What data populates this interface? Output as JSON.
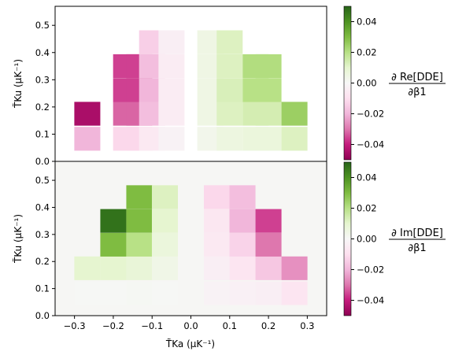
{
  "chart_data": [
    {
      "type": "heatmap",
      "panel": "top",
      "ylabel": "T̃Ku (μK⁻¹)",
      "xlim": [
        -0.35,
        0.35
      ],
      "ylim": [
        0.0,
        0.57
      ],
      "xticks": [
        -0.3,
        -0.2,
        -0.1,
        0.0,
        0.1,
        0.2,
        0.3
      ],
      "yticks": [
        0.0,
        0.1,
        0.2,
        0.3,
        0.4,
        0.5
      ],
      "ytick_labels": [
        "0.0",
        "0.1",
        "0.2",
        "0.3",
        "0.4",
        "0.5"
      ],
      "background": "#ffffff",
      "colorbar": {
        "label_numerator": "∂ Re[DDE]",
        "label_denominator": "∂β1",
        "range": [
          -0.05,
          0.05
        ],
        "ticks": [
          0.04,
          0.02,
          0.0,
          -0.02,
          -0.04
        ],
        "tick_labels": [
          "0.04",
          "0.02",
          "0.00",
          "−0.02",
          "−0.04"
        ],
        "colormap": "PiYG"
      },
      "cells": [
        {
          "x": -0.267,
          "y": 0.083,
          "value": -0.02
        },
        {
          "x": -0.267,
          "y": 0.175,
          "value": -0.045
        },
        {
          "x": -0.167,
          "y": 0.083,
          "value": -0.012
        },
        {
          "x": -0.167,
          "y": 0.175,
          "value": -0.032
        },
        {
          "x": -0.167,
          "y": 0.262,
          "value": -0.036
        },
        {
          "x": -0.167,
          "y": 0.35,
          "value": -0.036
        },
        {
          "x": -0.133,
          "y": 0.083,
          "value": -0.012
        },
        {
          "x": -0.133,
          "y": 0.175,
          "value": -0.032
        },
        {
          "x": -0.133,
          "y": 0.262,
          "value": -0.036
        },
        {
          "x": -0.133,
          "y": 0.35,
          "value": -0.036
        },
        {
          "x": -0.1,
          "y": 0.083,
          "value": -0.006
        },
        {
          "x": -0.1,
          "y": 0.175,
          "value": -0.018
        },
        {
          "x": -0.1,
          "y": 0.262,
          "value": -0.02
        },
        {
          "x": -0.1,
          "y": 0.35,
          "value": -0.018
        },
        {
          "x": -0.1,
          "y": 0.438,
          "value": -0.014
        },
        {
          "x": -0.05,
          "y": 0.083,
          "value": -0.002
        },
        {
          "x": -0.05,
          "y": 0.175,
          "value": -0.005
        },
        {
          "x": -0.05,
          "y": 0.262,
          "value": -0.005
        },
        {
          "x": -0.05,
          "y": 0.35,
          "value": -0.005
        },
        {
          "x": -0.05,
          "y": 0.438,
          "value": -0.004
        },
        {
          "x": 0.05,
          "y": 0.083,
          "value": 0.003
        },
        {
          "x": 0.05,
          "y": 0.175,
          "value": 0.005
        },
        {
          "x": 0.05,
          "y": 0.262,
          "value": 0.005
        },
        {
          "x": 0.05,
          "y": 0.35,
          "value": 0.005
        },
        {
          "x": 0.05,
          "y": 0.438,
          "value": 0.005
        },
        {
          "x": 0.1,
          "y": 0.083,
          "value": 0.006
        },
        {
          "x": 0.1,
          "y": 0.175,
          "value": 0.012
        },
        {
          "x": 0.1,
          "y": 0.262,
          "value": 0.013
        },
        {
          "x": 0.1,
          "y": 0.35,
          "value": 0.012
        },
        {
          "x": 0.1,
          "y": 0.438,
          "value": 0.012
        },
        {
          "x": 0.167,
          "y": 0.083,
          "value": 0.007
        },
        {
          "x": 0.167,
          "y": 0.175,
          "value": 0.014
        },
        {
          "x": 0.167,
          "y": 0.262,
          "value": 0.02
        },
        {
          "x": 0.167,
          "y": 0.35,
          "value": 0.021
        },
        {
          "x": 0.2,
          "y": 0.083,
          "value": 0.007
        },
        {
          "x": 0.2,
          "y": 0.175,
          "value": 0.014
        },
        {
          "x": 0.2,
          "y": 0.262,
          "value": 0.02
        },
        {
          "x": 0.2,
          "y": 0.35,
          "value": 0.021
        },
        {
          "x": 0.267,
          "y": 0.083,
          "value": 0.012
        },
        {
          "x": 0.267,
          "y": 0.175,
          "value": 0.025
        }
      ]
    },
    {
      "type": "heatmap",
      "panel": "bottom",
      "xlabel": "T̃Ka (μK⁻¹)",
      "ylabel": "T̃Ku (μK⁻¹)",
      "xlim": [
        -0.35,
        0.35
      ],
      "ylim": [
        0.0,
        0.57
      ],
      "xticks": [
        -0.3,
        -0.2,
        -0.1,
        0.0,
        0.1,
        0.2,
        0.3
      ],
      "xtick_labels": [
        "−0.3",
        "−0.2",
        "−0.1",
        "0.0",
        "0.1",
        "0.2",
        "0.3"
      ],
      "yticks": [
        0.0,
        0.1,
        0.2,
        0.3,
        0.4,
        0.5
      ],
      "ytick_labels": [
        "0.0",
        "0.1",
        "0.2",
        "0.3",
        "0.4",
        "0.5"
      ],
      "background": "#f6f6f4",
      "colorbar": {
        "label_numerator": "∂ Im[DDE]",
        "label_denominator": "∂β1",
        "range": [
          -0.05,
          0.05
        ],
        "ticks": [
          0.04,
          0.02,
          0.0,
          -0.02,
          -0.04
        ],
        "tick_labels": [
          "0.04",
          "0.02",
          "0.00",
          "−0.02",
          "−0.04"
        ],
        "colormap": "PiYG"
      },
      "cells": [
        {
          "x": -0.267,
          "y": 0.083,
          "value": 0.0005
        },
        {
          "x": -0.267,
          "y": 0.175,
          "value": 0.01
        },
        {
          "x": -0.2,
          "y": 0.083,
          "value": 0.0005
        },
        {
          "x": -0.2,
          "y": 0.175,
          "value": 0.01
        },
        {
          "x": -0.2,
          "y": 0.262,
          "value": 0.03
        },
        {
          "x": -0.2,
          "y": 0.35,
          "value": 0.047
        },
        {
          "x": -0.133,
          "y": 0.083,
          "value": 0.001
        },
        {
          "x": -0.133,
          "y": 0.175,
          "value": 0.008
        },
        {
          "x": -0.133,
          "y": 0.262,
          "value": 0.02
        },
        {
          "x": -0.133,
          "y": 0.35,
          "value": 0.03
        },
        {
          "x": -0.133,
          "y": 0.438,
          "value": 0.03
        },
        {
          "x": -0.067,
          "y": 0.083,
          "value": 0.0005
        },
        {
          "x": -0.067,
          "y": 0.175,
          "value": 0.004
        },
        {
          "x": -0.067,
          "y": 0.262,
          "value": 0.007
        },
        {
          "x": -0.067,
          "y": 0.35,
          "value": 0.01
        },
        {
          "x": -0.067,
          "y": 0.438,
          "value": 0.012
        },
        {
          "x": 0.067,
          "y": 0.083,
          "value": -0.002
        },
        {
          "x": 0.067,
          "y": 0.175,
          "value": -0.004
        },
        {
          "x": 0.067,
          "y": 0.262,
          "value": -0.006
        },
        {
          "x": 0.067,
          "y": 0.35,
          "value": -0.007
        },
        {
          "x": 0.067,
          "y": 0.438,
          "value": -0.012
        },
        {
          "x": 0.133,
          "y": 0.083,
          "value": -0.003
        },
        {
          "x": 0.133,
          "y": 0.175,
          "value": -0.008
        },
        {
          "x": 0.133,
          "y": 0.262,
          "value": -0.013
        },
        {
          "x": 0.133,
          "y": 0.35,
          "value": -0.02
        },
        {
          "x": 0.133,
          "y": 0.438,
          "value": -0.018
        },
        {
          "x": 0.2,
          "y": 0.083,
          "value": -0.004
        },
        {
          "x": 0.2,
          "y": 0.175,
          "value": -0.016
        },
        {
          "x": 0.2,
          "y": 0.262,
          "value": -0.03
        },
        {
          "x": 0.2,
          "y": 0.35,
          "value": -0.036
        },
        {
          "x": 0.267,
          "y": 0.083,
          "value": -0.008
        },
        {
          "x": 0.267,
          "y": 0.175,
          "value": -0.026
        }
      ]
    }
  ]
}
